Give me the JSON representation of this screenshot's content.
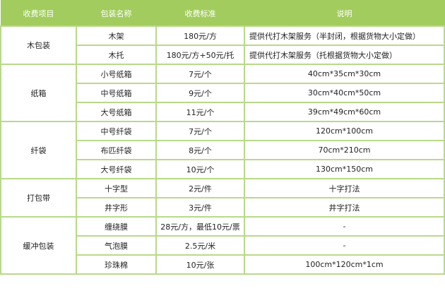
{
  "headers": [
    "收费项目",
    "包装名称",
    "收费标准",
    "说明"
  ],
  "groups": [
    {
      "category": "木包装",
      "rows": [
        {
          "name": "木架",
          "price": "180元/方",
          "note": "提供代打木架服务（半封闭，根据货物大小定做）"
        },
        {
          "name": "木托",
          "price": "180元/方+50元/托",
          "note": "提供代打木架服务（托根据货物大小定做）"
        }
      ]
    },
    {
      "category": "纸箱",
      "rows": [
        {
          "name": "小号纸箱",
          "price": "7元/个",
          "note": "40cm*35cm*30cm"
        },
        {
          "name": "中号纸箱",
          "price": "9元/个",
          "note": "30cm*40cm*50cm"
        },
        {
          "name": "大号纸箱",
          "price": "11元/个",
          "note": "39cm*49cm*60cm"
        }
      ]
    },
    {
      "category": "纤袋",
      "rows": [
        {
          "name": "中号纤袋",
          "price": "7元/个",
          "note": "120cm*100cm"
        },
        {
          "name": "布匹纤袋",
          "price": "8元/个",
          "note": "70cm*210cm"
        },
        {
          "name": "大号纤袋",
          "price": "10元/个",
          "note": "130cm*150cm"
        }
      ]
    },
    {
      "category": "打包带",
      "rows": [
        {
          "name": "十字型",
          "price": "2元/件",
          "note": "十字打法"
        },
        {
          "name": "井字形",
          "price": "3元/件",
          "note": "井字打法"
        }
      ]
    },
    {
      "category": "缓冲包装",
      "rows": [
        {
          "name": "缠绕膜",
          "price": "28元/方，最低10元/票",
          "note": "-"
        },
        {
          "name": "气泡膜",
          "price": "2.5元/米",
          "note": "-"
        },
        {
          "name": "珍珠棉",
          "price": "10元/张",
          "note": "100cm*120cm*1cm"
        }
      ]
    }
  ]
}
